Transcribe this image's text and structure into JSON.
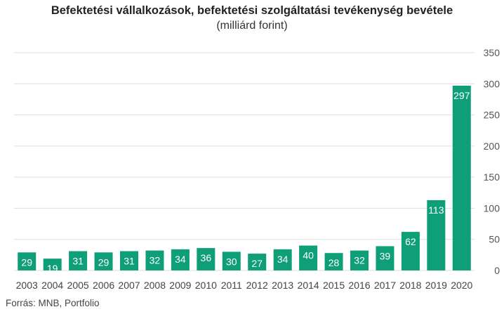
{
  "header": {
    "title": "Befektetési vállalkozások, befektetési szolgáltatási tevékenység bevétele",
    "subtitle": "(milliárd forint)"
  },
  "footer": {
    "source": "Forrás: MNB, Portfolio"
  },
  "colors": {
    "bar": "#0e9e78",
    "grid": "#dddddd"
  },
  "chart_data": {
    "type": "bar",
    "title": "Befektetési vállalkozások, befektetési szolgáltatási tevékenység bevétele",
    "subtitle": "(milliárd forint)",
    "categories": [
      "2003",
      "2004",
      "2005",
      "2006",
      "2007",
      "2008",
      "2009",
      "2010",
      "2011",
      "2012",
      "2013",
      "2014",
      "2015",
      "2016",
      "2017",
      "2018",
      "2019",
      "2020"
    ],
    "values": [
      29,
      19,
      31,
      29,
      31,
      32,
      34,
      36,
      30,
      27,
      34,
      40,
      28,
      32,
      39,
      62,
      113,
      297
    ],
    "ylim": [
      0,
      350
    ],
    "yticks": [
      0,
      50,
      100,
      150,
      200,
      250,
      300,
      350
    ],
    "y_axis_side": "right",
    "grid": true,
    "data_labels": true
  }
}
